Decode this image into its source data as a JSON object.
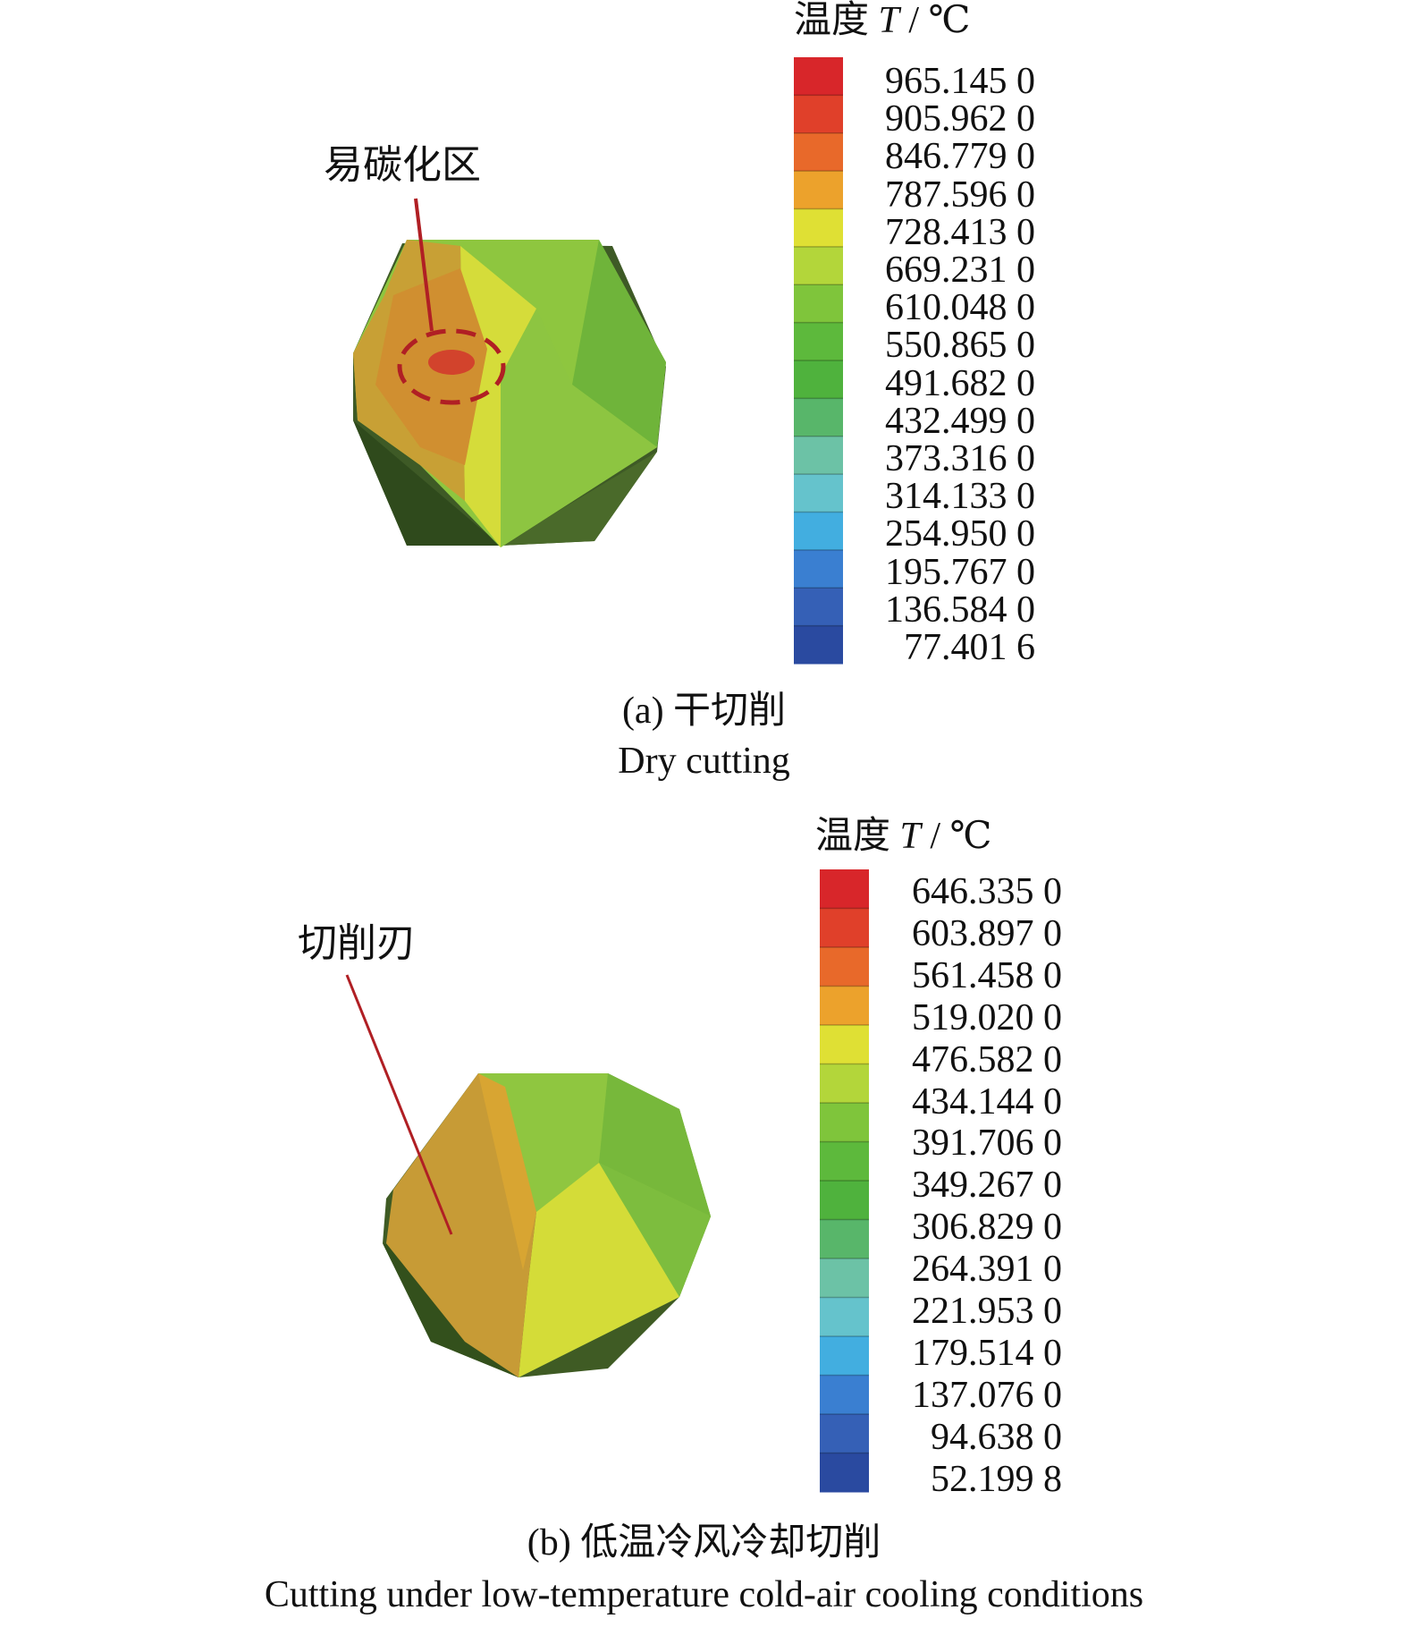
{
  "panel_a": {
    "legend_title_prefix": "温度",
    "legend_title_symbol": "T",
    "legend_title_suffix": "/ ℃",
    "scale_values": [
      "965.145 0",
      "905.962 0",
      "846.779 0",
      "787.596 0",
      "728.413 0",
      "669.231 0",
      "610.048 0",
      "550.865 0",
      "491.682 0",
      "432.499 0",
      "373.316 0",
      "314.133 0",
      "254.950 0",
      "195.767 0",
      "136.584 0",
      "77.401 6"
    ],
    "callout": "易碳化区",
    "caption_cn": "(a) 干切削",
    "caption_en": "Dry cutting"
  },
  "panel_b": {
    "legend_title_prefix": "温度",
    "legend_title_symbol": "T",
    "legend_title_suffix": "/ ℃",
    "scale_values": [
      "646.335 0",
      "603.897 0",
      "561.458 0",
      "519.020 0",
      "476.582 0",
      "434.144 0",
      "391.706 0",
      "349.267 0",
      "306.829 0",
      "264.391 0",
      "221.953 0",
      "179.514 0",
      "137.076 0",
      "94.638 0",
      "52.199 8"
    ],
    "callout": "切削刃",
    "caption_cn": "(b) 低温冷风冷却切削",
    "caption_en": "Cutting under low-temperature cold-air cooling conditions"
  },
  "colors": {
    "scale_top_to_bottom": [
      "#d8262a",
      "#e0402a",
      "#e8692a",
      "#eca22c",
      "#dfe034",
      "#b3d63a",
      "#7fc53b",
      "#5db93c",
      "#4fb23d",
      "#58b66a",
      "#6cc2a6",
      "#65c3cc",
      "#42aee0",
      "#3a7fd1",
      "#3560b6",
      "#2a4aa0"
    ]
  }
}
